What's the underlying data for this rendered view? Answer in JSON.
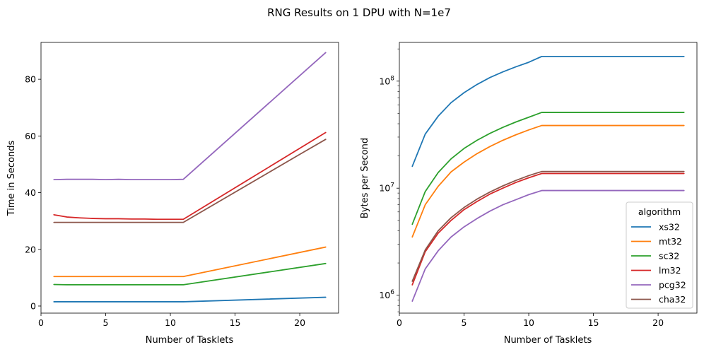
{
  "figure": {
    "title": "RNG Results on 1 DPU with N=1e7"
  },
  "colors": {
    "xs32": "#1f77b4",
    "mt32": "#ff7f0e",
    "sc32": "#2ca02c",
    "lm32": "#d62728",
    "pcg32": "#9467bd",
    "cha32": "#8c564b"
  },
  "chart_data": [
    {
      "type": "line",
      "xlabel": "Number of Tasklets",
      "ylabel": "Time in Seconds",
      "xlim": [
        0,
        23
      ],
      "ylim": [
        -2.5,
        93
      ],
      "xticks": [
        0,
        5,
        10,
        15,
        20
      ],
      "yticks": [
        0,
        20,
        40,
        60,
        80
      ],
      "series": [
        {
          "name": "xs32",
          "x": [
            1,
            2,
            3,
            4,
            5,
            6,
            7,
            8,
            9,
            10,
            11,
            22
          ],
          "y": [
            1.5,
            1.5,
            1.5,
            1.5,
            1.5,
            1.5,
            1.5,
            1.5,
            1.5,
            1.5,
            1.5,
            3.1
          ]
        },
        {
          "name": "mt32",
          "x": [
            1,
            2,
            3,
            4,
            5,
            6,
            7,
            8,
            9,
            10,
            11,
            22
          ],
          "y": [
            10.4,
            10.4,
            10.4,
            10.4,
            10.4,
            10.4,
            10.4,
            10.4,
            10.4,
            10.4,
            10.4,
            20.8
          ]
        },
        {
          "name": "sc32",
          "x": [
            1,
            2,
            3,
            4,
            5,
            6,
            7,
            8,
            9,
            10,
            11,
            22
          ],
          "y": [
            7.6,
            7.5,
            7.5,
            7.5,
            7.5,
            7.5,
            7.5,
            7.5,
            7.5,
            7.5,
            7.5,
            15.0
          ]
        },
        {
          "name": "lm32",
          "x": [
            1,
            2,
            3,
            4,
            5,
            6,
            7,
            8,
            9,
            10,
            11,
            22
          ],
          "y": [
            32.2,
            31.4,
            31.1,
            30.9,
            30.8,
            30.8,
            30.7,
            30.7,
            30.6,
            30.6,
            30.6,
            61.2
          ]
        },
        {
          "name": "pcg32",
          "x": [
            1,
            2,
            3,
            4,
            5,
            6,
            7,
            8,
            9,
            10,
            11,
            22
          ],
          "y": [
            44.6,
            44.7,
            44.7,
            44.7,
            44.6,
            44.7,
            44.6,
            44.6,
            44.6,
            44.6,
            44.7,
            89.4
          ]
        },
        {
          "name": "cha32",
          "x": [
            1,
            2,
            3,
            4,
            5,
            6,
            7,
            8,
            9,
            10,
            11,
            20,
            22
          ],
          "y": [
            29.5,
            29.5,
            29.5,
            29.5,
            29.5,
            29.5,
            29.5,
            29.5,
            29.5,
            29.5,
            29.5,
            53.5,
            58.8
          ]
        }
      ]
    },
    {
      "type": "line",
      "xlabel": "Number of Tasklets",
      "ylabel": "Bytes per Second",
      "yscale": "log",
      "xlim": [
        0,
        23
      ],
      "ylim": [
        680000,
        230000000
      ],
      "xticks": [
        0,
        5,
        10,
        15,
        20
      ],
      "yticks": [
        1000000,
        10000000,
        100000000
      ],
      "ytick_labels": [
        {
          "base": "10",
          "exp": "6"
        },
        {
          "base": "10",
          "exp": "7"
        },
        {
          "base": "10",
          "exp": "8"
        }
      ],
      "series": [
        {
          "name": "xs32",
          "x": [
            1,
            2,
            3,
            4,
            5,
            6,
            7,
            8,
            9,
            10,
            11,
            12,
            14,
            16,
            18,
            20,
            22
          ],
          "y": [
            16000000,
            32000000,
            47000000,
            63000000,
            78000000,
            93000000,
            108000000,
            122000000,
            136000000,
            150000000,
            170000000,
            170000000,
            170000000,
            170000000,
            170000000,
            170000000,
            170000000
          ]
        },
        {
          "name": "mt32",
          "x": [
            1,
            2,
            3,
            4,
            5,
            6,
            7,
            8,
            9,
            10,
            11,
            12,
            14,
            16,
            18,
            20,
            22
          ],
          "y": [
            3500000,
            7000000,
            10400000,
            14200000,
            17500000,
            21000000,
            24500000,
            28000000,
            31500000,
            35000000,
            38500000,
            38500000,
            38500000,
            38500000,
            38500000,
            38500000,
            38500000
          ]
        },
        {
          "name": "sc32",
          "x": [
            1,
            2,
            3,
            4,
            5,
            6,
            7,
            8,
            9,
            10,
            11,
            12,
            14,
            16,
            18,
            20,
            22
          ],
          "y": [
            4600000,
            9300000,
            14000000,
            18800000,
            23500000,
            28000000,
            32500000,
            37000000,
            41500000,
            46000000,
            51000000,
            51000000,
            51000000,
            51000000,
            51000000,
            51000000,
            51000000
          ]
        },
        {
          "name": "lm32",
          "x": [
            1,
            2,
            3,
            4,
            5,
            6,
            7,
            8,
            9,
            10,
            11,
            12,
            14,
            16,
            18,
            20,
            22
          ],
          "y": [
            1250000,
            2550000,
            3800000,
            5000000,
            6300000,
            7500000,
            8800000,
            10000000,
            11300000,
            12500000,
            13700000,
            13700000,
            13700000,
            13700000,
            13700000,
            13700000,
            13700000
          ]
        },
        {
          "name": "pcg32",
          "x": [
            1,
            2,
            3,
            4,
            5,
            6,
            7,
            8,
            9,
            10,
            11,
            12,
            14,
            16,
            18,
            20,
            22
          ],
          "y": [
            880000,
            1760000,
            2600000,
            3500000,
            4350000,
            5200000,
            6100000,
            7000000,
            7800000,
            8700000,
            9500000,
            9500000,
            9500000,
            9500000,
            9500000,
            9500000,
            9500000
          ]
        },
        {
          "name": "cha32",
          "x": [
            1,
            2,
            3,
            4,
            5,
            6,
            7,
            8,
            9,
            10,
            11,
            12,
            14,
            16,
            18,
            20,
            22
          ],
          "y": [
            1350000,
            2650000,
            4000000,
            5300000,
            6600000,
            7900000,
            9200000,
            10500000,
            11800000,
            13100000,
            14300000,
            14300000,
            14300000,
            14300000,
            14300000,
            14300000,
            14300000
          ]
        }
      ],
      "legend": {
        "title": "algorithm",
        "placement": "lower-right",
        "entries": [
          "xs32",
          "mt32",
          "sc32",
          "lm32",
          "pcg32",
          "cha32"
        ]
      }
    }
  ]
}
